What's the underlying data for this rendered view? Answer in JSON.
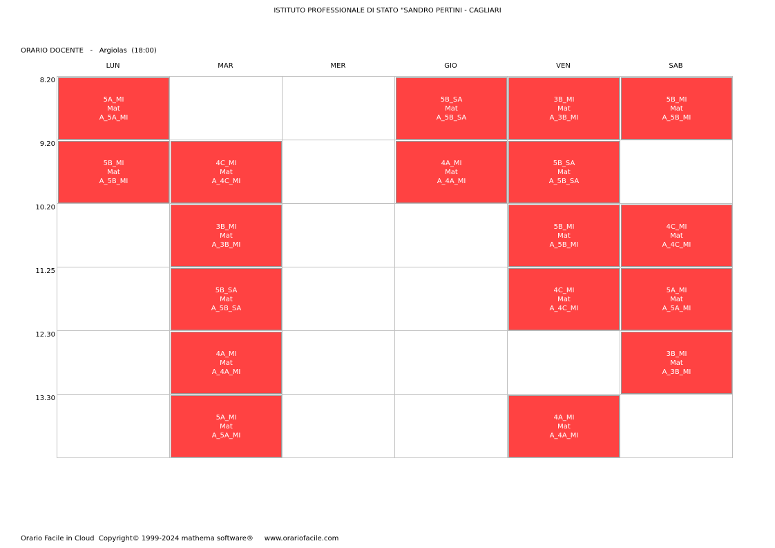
{
  "header": {
    "school": "ISTITUTO PROFESSIONALE DI STATO \"SANDRO PERTINI - CAGLIARI",
    "label": "ORARIO DOCENTE",
    "separator": "-",
    "teacher": "Argiolas",
    "hours": "(18:00)"
  },
  "days": [
    "LUN",
    "MAR",
    "MER",
    "GIO",
    "VEN",
    "SAB"
  ],
  "times": [
    "8.20",
    "9.20",
    "10.20",
    "11.25",
    "12.30",
    "13.30"
  ],
  "schedule": [
    [
      "5A_MI|Mat|A_5A_MI",
      "",
      "",
      "5B_SA|Mat|A_5B_SA",
      "3B_MI|Mat|A_3B_MI",
      "5B_MI|Mat|A_5B_MI"
    ],
    [
      "5B_MI|Mat|A_5B_MI",
      "4C_MI|Mat|A_4C_MI",
      "",
      "4A_MI|Mat|A_4A_MI",
      "5B_SA|Mat|A_5B_SA",
      ""
    ],
    [
      "",
      "3B_MI|Mat|A_3B_MI",
      "",
      "",
      "5B_MI|Mat|A_5B_MI",
      "4C_MI|Mat|A_4C_MI"
    ],
    [
      "",
      "5B_SA|Mat|A_5B_SA",
      "",
      "",
      "4C_MI|Mat|A_4C_MI",
      "5A_MI|Mat|A_5A_MI"
    ],
    [
      "",
      "4A_MI|Mat|A_4A_MI",
      "",
      "",
      "",
      "3B_MI|Mat|A_3B_MI"
    ],
    [
      "",
      "5A_MI|Mat|A_5A_MI",
      "",
      "",
      "4A_MI|Mat|A_4A_MI",
      ""
    ]
  ],
  "colors": {
    "lesson": "#ff4242",
    "grid": "#c0c0c0"
  },
  "footer": {
    "product": "Orario Facile in Cloud",
    "copyright": "Copyright© 1999-2024 mathema software®",
    "website": "www.orariofacile.com"
  }
}
